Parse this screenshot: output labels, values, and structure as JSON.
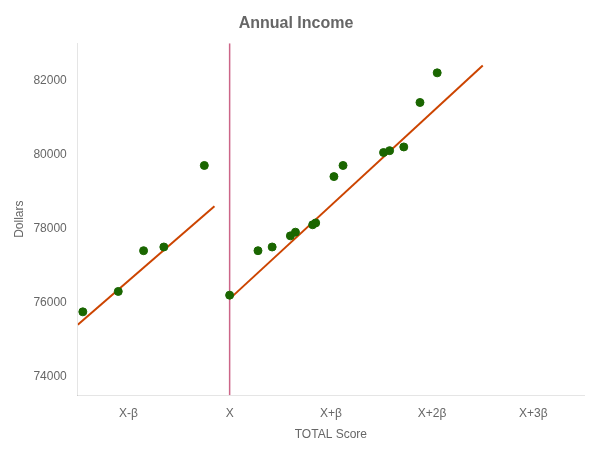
{
  "chart_data": {
    "type": "scatter",
    "title": "Annual Income",
    "xlabel": "TOTAL Score",
    "ylabel": "Dollars",
    "xlim": [
      -0.5,
      4.5
    ],
    "ylim": [
      73500,
      83000
    ],
    "xticks": [
      {
        "value": 0,
        "label": "X-β"
      },
      {
        "value": 1,
        "label": "X"
      },
      {
        "value": 2,
        "label": "X+β"
      },
      {
        "value": 3,
        "label": "X+2β"
      },
      {
        "value": 4,
        "label": "X+3β"
      }
    ],
    "yticks": [
      74000,
      76000,
      78000,
      80000,
      82000
    ],
    "grid": false,
    "series": [
      {
        "type": "scatter",
        "color": "#1a6600",
        "x": [
          -0.45,
          -0.1,
          0.15,
          0.35,
          0.75
        ],
        "values": [
          75750,
          76300,
          77400,
          77500,
          79700
        ]
      },
      {
        "type": "scatter",
        "color": "#1a6600",
        "x": [
          1.0,
          1.28,
          1.42,
          1.6,
          1.65,
          1.82,
          1.85,
          2.03,
          2.12,
          2.52,
          2.58,
          2.72,
          2.88,
          3.05
        ],
        "values": [
          76200,
          77400,
          77500,
          77800,
          77900,
          78100,
          78150,
          79400,
          79700,
          80050,
          80100,
          80200,
          81400,
          82200
        ]
      },
      {
        "type": "line",
        "color": "#cc4400",
        "x": [
          -0.5,
          0.85
        ],
        "values": [
          75400,
          78600
        ]
      },
      {
        "type": "line",
        "color": "#cc4400",
        "x": [
          1.0,
          3.5
        ],
        "values": [
          76100,
          82400
        ]
      }
    ],
    "vlines": [
      {
        "x": 1.0,
        "color": "#cc6688"
      }
    ]
  }
}
